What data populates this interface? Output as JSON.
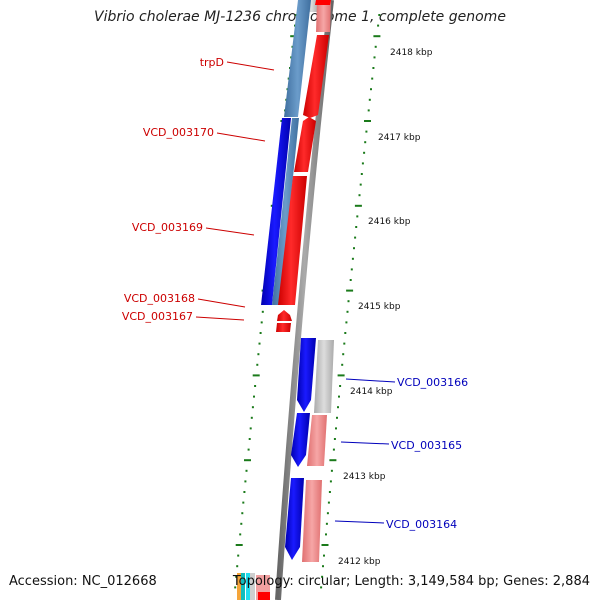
{
  "title": "Vibrio cholerae MJ-1236 chromosome 1, complete genome",
  "footer": {
    "accession": "Accession: NC_012668",
    "topology": "Topology: circular; Length: 3,149,584 bp; Genes: 2,884"
  },
  "scale_labels": [
    "2418 kbp",
    "2417 kbp",
    "2416 kbp",
    "2415 kbp",
    "2414 kbp",
    "2413 kbp",
    "2412 kbp"
  ],
  "gene_labels": {
    "left": [
      "trpD",
      "VCD_003170",
      "VCD_003169",
      "VCD_003168",
      "VCD_003167"
    ],
    "right": [
      "VCD_003166",
      "VCD_003165",
      "VCD_003164"
    ]
  },
  "colors": {
    "forward_cds": "#ff0000",
    "reverse_cds": "#0000ff",
    "left_label": "#cc0000",
    "right_label": "#0000bb",
    "tick": "#1a7a1a",
    "backbone": "#888888"
  }
}
